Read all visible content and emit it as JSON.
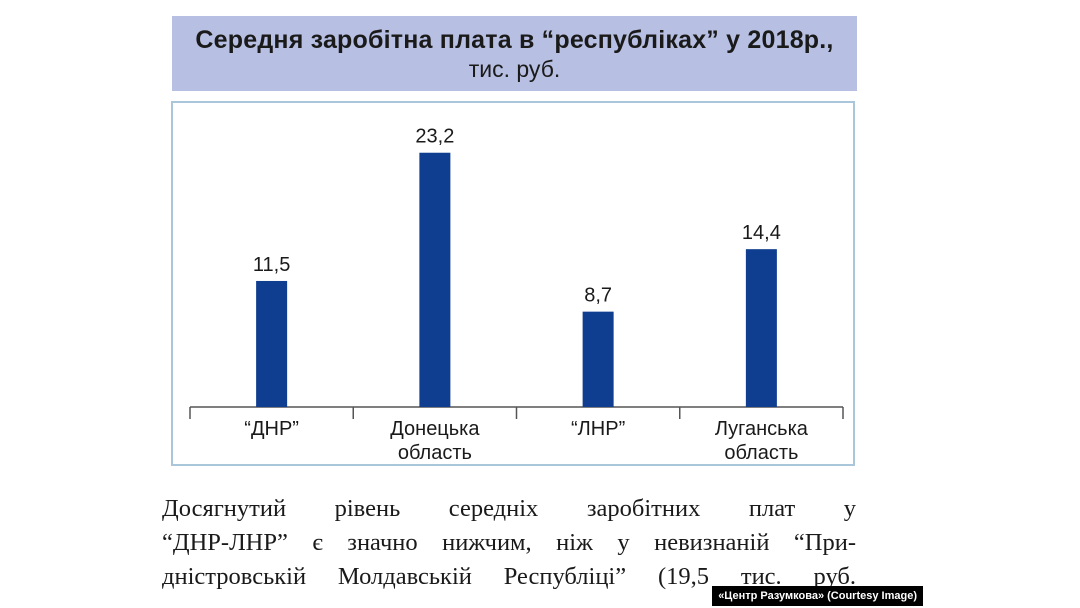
{
  "chart_data": {
    "type": "bar",
    "title": "Середня заробітна плата в “республіках” у 2018р.,",
    "subtitle": "тис. руб.",
    "categories": [
      [
        "“ДНР”"
      ],
      [
        "Донецька",
        "область"
      ],
      [
        "“ЛНР”"
      ],
      [
        "Луганська",
        "область"
      ]
    ],
    "values": [
      11.5,
      23.2,
      8.7,
      14.4
    ],
    "value_labels": [
      "11,5",
      "23,2",
      "8,7",
      "14,4"
    ],
    "ylim": [
      0,
      25
    ],
    "grid": false,
    "bar_color": "#0f3d8f",
    "title_background": "#b7bfe2",
    "frame_color": "#a9c6db"
  },
  "body_text": {
    "lines": [
      "Досягнутий рівень середніх заробітних плат у",
      "“ДНР-ЛНР” є значно нижчим, ніж у невизнаній “При-",
      "дністровській Молдавській Республіці” (19,5 тис. руб."
    ]
  },
  "credit": "«Центр Разумкова» (Courtesy Image)"
}
